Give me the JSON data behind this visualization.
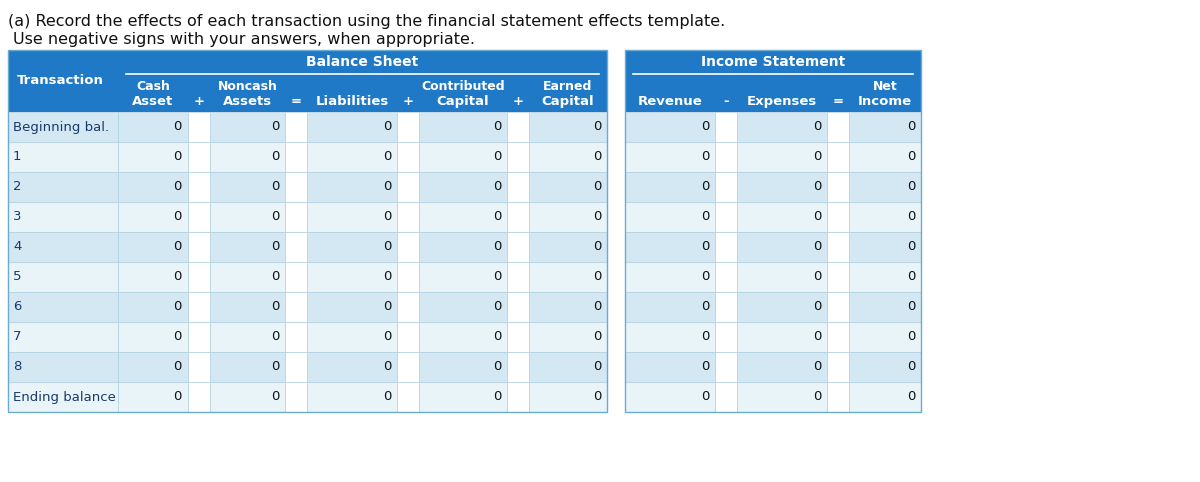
{
  "title_line1": "(a) Record the effects of each transaction using the financial statement effects template.",
  "title_line2": "Use negative signs with your answers, when appropriate.",
  "header_bg": "#2079c7",
  "header_text_color": "#ffffff",
  "row_bg_a": "#d4e8f3",
  "row_bg_b": "#e9f4f9",
  "row_text_color": "#1a3a6b",
  "border_color": "#b0cfe0",
  "bs_header": "Balance Sheet",
  "is_header": "Income Statement",
  "col1_label": "Transaction",
  "bs_col_top": [
    "Cash",
    "Noncash",
    "",
    "Contributed",
    "Earned"
  ],
  "bs_col_bot": [
    "Asset",
    "Assets",
    "Liabilities",
    "Capital",
    "Capital"
  ],
  "bs_ops": [
    "+",
    "=",
    "+",
    "+"
  ],
  "is_col_top": [
    "",
    "",
    "Net"
  ],
  "is_col_bot": [
    "Revenue",
    "Expenses",
    "Income"
  ],
  "is_ops": [
    "-",
    "="
  ],
  "row_labels": [
    "Beginning bal.",
    "1",
    "2",
    "3",
    "4",
    "5",
    "6",
    "7",
    "8",
    "Ending balance"
  ],
  "value": "0",
  "background_color": "#ffffff",
  "title_fontsize": 11.5,
  "header_fontsize": 9.5,
  "data_fontsize": 9.5
}
